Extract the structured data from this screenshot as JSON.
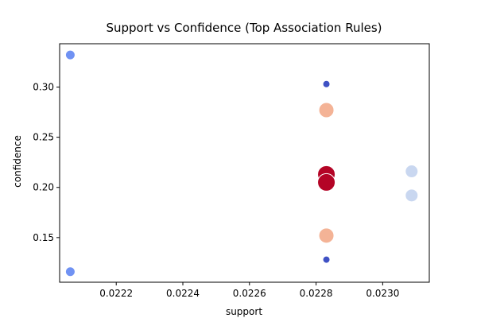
{
  "chart_data": {
    "type": "scatter",
    "title": "Support vs Confidence (Top Association Rules)",
    "xlabel": "support",
    "ylabel": "confidence",
    "xlim": [
      0.02203,
      0.02314
    ],
    "ylim": [
      0.1055,
      0.3432
    ],
    "xticks": [
      "0.0222",
      "0.0224",
      "0.0226",
      "0.0228",
      "0.0230"
    ],
    "xtick_values": [
      0.0222,
      0.0224,
      0.0226,
      0.0228,
      0.023
    ],
    "yticks": [
      "0.15",
      "0.20",
      "0.25",
      "0.30"
    ],
    "ytick_values": [
      0.15,
      0.2,
      0.25,
      0.3
    ],
    "grid": false,
    "legend": "none",
    "points": [
      {
        "x": 0.022062,
        "y": 0.332,
        "color": "#7092f3",
        "size_rank": 2
      },
      {
        "x": 0.022062,
        "y": 0.116,
        "color": "#7092f3",
        "size_rank": 2
      },
      {
        "x": 0.022831,
        "y": 0.303,
        "color": "#3f51c4",
        "size_rank": 1
      },
      {
        "x": 0.022831,
        "y": 0.128,
        "color": "#3f51c4",
        "size_rank": 1
      },
      {
        "x": 0.022831,
        "y": 0.277,
        "color": "#f4b396",
        "size_rank": 4
      },
      {
        "x": 0.022831,
        "y": 0.152,
        "color": "#f4b396",
        "size_rank": 4
      },
      {
        "x": 0.022831,
        "y": 0.213,
        "color": "#b40426",
        "size_rank": 5
      },
      {
        "x": 0.022831,
        "y": 0.205,
        "color": "#b40426",
        "size_rank": 5
      },
      {
        "x": 0.023087,
        "y": 0.216,
        "color": "#c9d7f0",
        "size_rank": 3
      },
      {
        "x": 0.023087,
        "y": 0.192,
        "color": "#c9d7f0",
        "size_rank": 3
      }
    ]
  }
}
